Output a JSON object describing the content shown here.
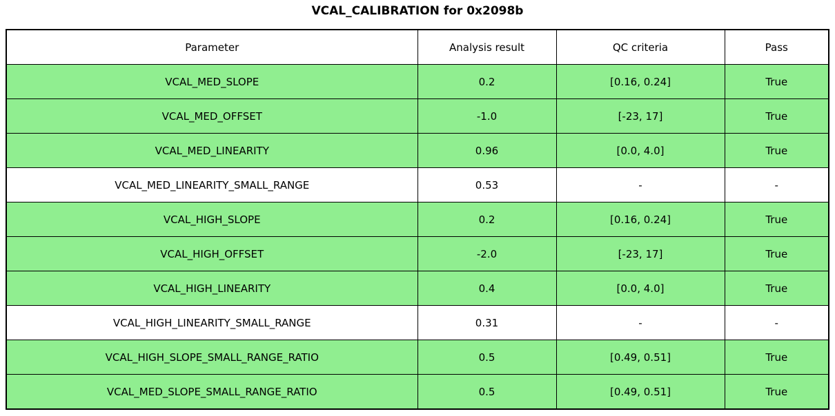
{
  "title": "VCAL_CALIBRATION for 0x2098b",
  "chart_data": {
    "type": "table",
    "title": "VCAL_CALIBRATION for 0x2098b",
    "columns": [
      "Parameter",
      "Analysis result",
      "QC criteria",
      "Pass"
    ],
    "rows": [
      {
        "parameter": "VCAL_MED_SLOPE",
        "result": "0.2",
        "criteria": "[0.16, 0.24]",
        "pass": "True",
        "highlight": true
      },
      {
        "parameter": "VCAL_MED_OFFSET",
        "result": "-1.0",
        "criteria": "[-23, 17]",
        "pass": "True",
        "highlight": true
      },
      {
        "parameter": "VCAL_MED_LINEARITY",
        "result": "0.96",
        "criteria": "[0.0, 4.0]",
        "pass": "True",
        "highlight": true
      },
      {
        "parameter": "VCAL_MED_LINEARITY_SMALL_RANGE",
        "result": "0.53",
        "criteria": "-",
        "pass": "-",
        "highlight": false
      },
      {
        "parameter": "VCAL_HIGH_SLOPE",
        "result": "0.2",
        "criteria": "[0.16, 0.24]",
        "pass": "True",
        "highlight": true
      },
      {
        "parameter": "VCAL_HIGH_OFFSET",
        "result": "-2.0",
        "criteria": "[-23, 17]",
        "pass": "True",
        "highlight": true
      },
      {
        "parameter": "VCAL_HIGH_LINEARITY",
        "result": "0.4",
        "criteria": "[0.0, 4.0]",
        "pass": "True",
        "highlight": true
      },
      {
        "parameter": "VCAL_HIGH_LINEARITY_SMALL_RANGE",
        "result": "0.31",
        "criteria": "-",
        "pass": "-",
        "highlight": false
      },
      {
        "parameter": "VCAL_HIGH_SLOPE_SMALL_RANGE_RATIO",
        "result": "0.5",
        "criteria": "[0.49, 0.51]",
        "pass": "True",
        "highlight": true
      },
      {
        "parameter": "VCAL_MED_SLOPE_SMALL_RANGE_RATIO",
        "result": "0.5",
        "criteria": "[0.49, 0.51]",
        "pass": "True",
        "highlight": true
      }
    ],
    "layout": {
      "legend": "none",
      "grid": "cell-borders"
    }
  },
  "colors": {
    "row_highlight": "#90ee90",
    "row_plain": "#ffffff",
    "border": "#000000",
    "text": "#000000",
    "background": "#ffffff"
  }
}
